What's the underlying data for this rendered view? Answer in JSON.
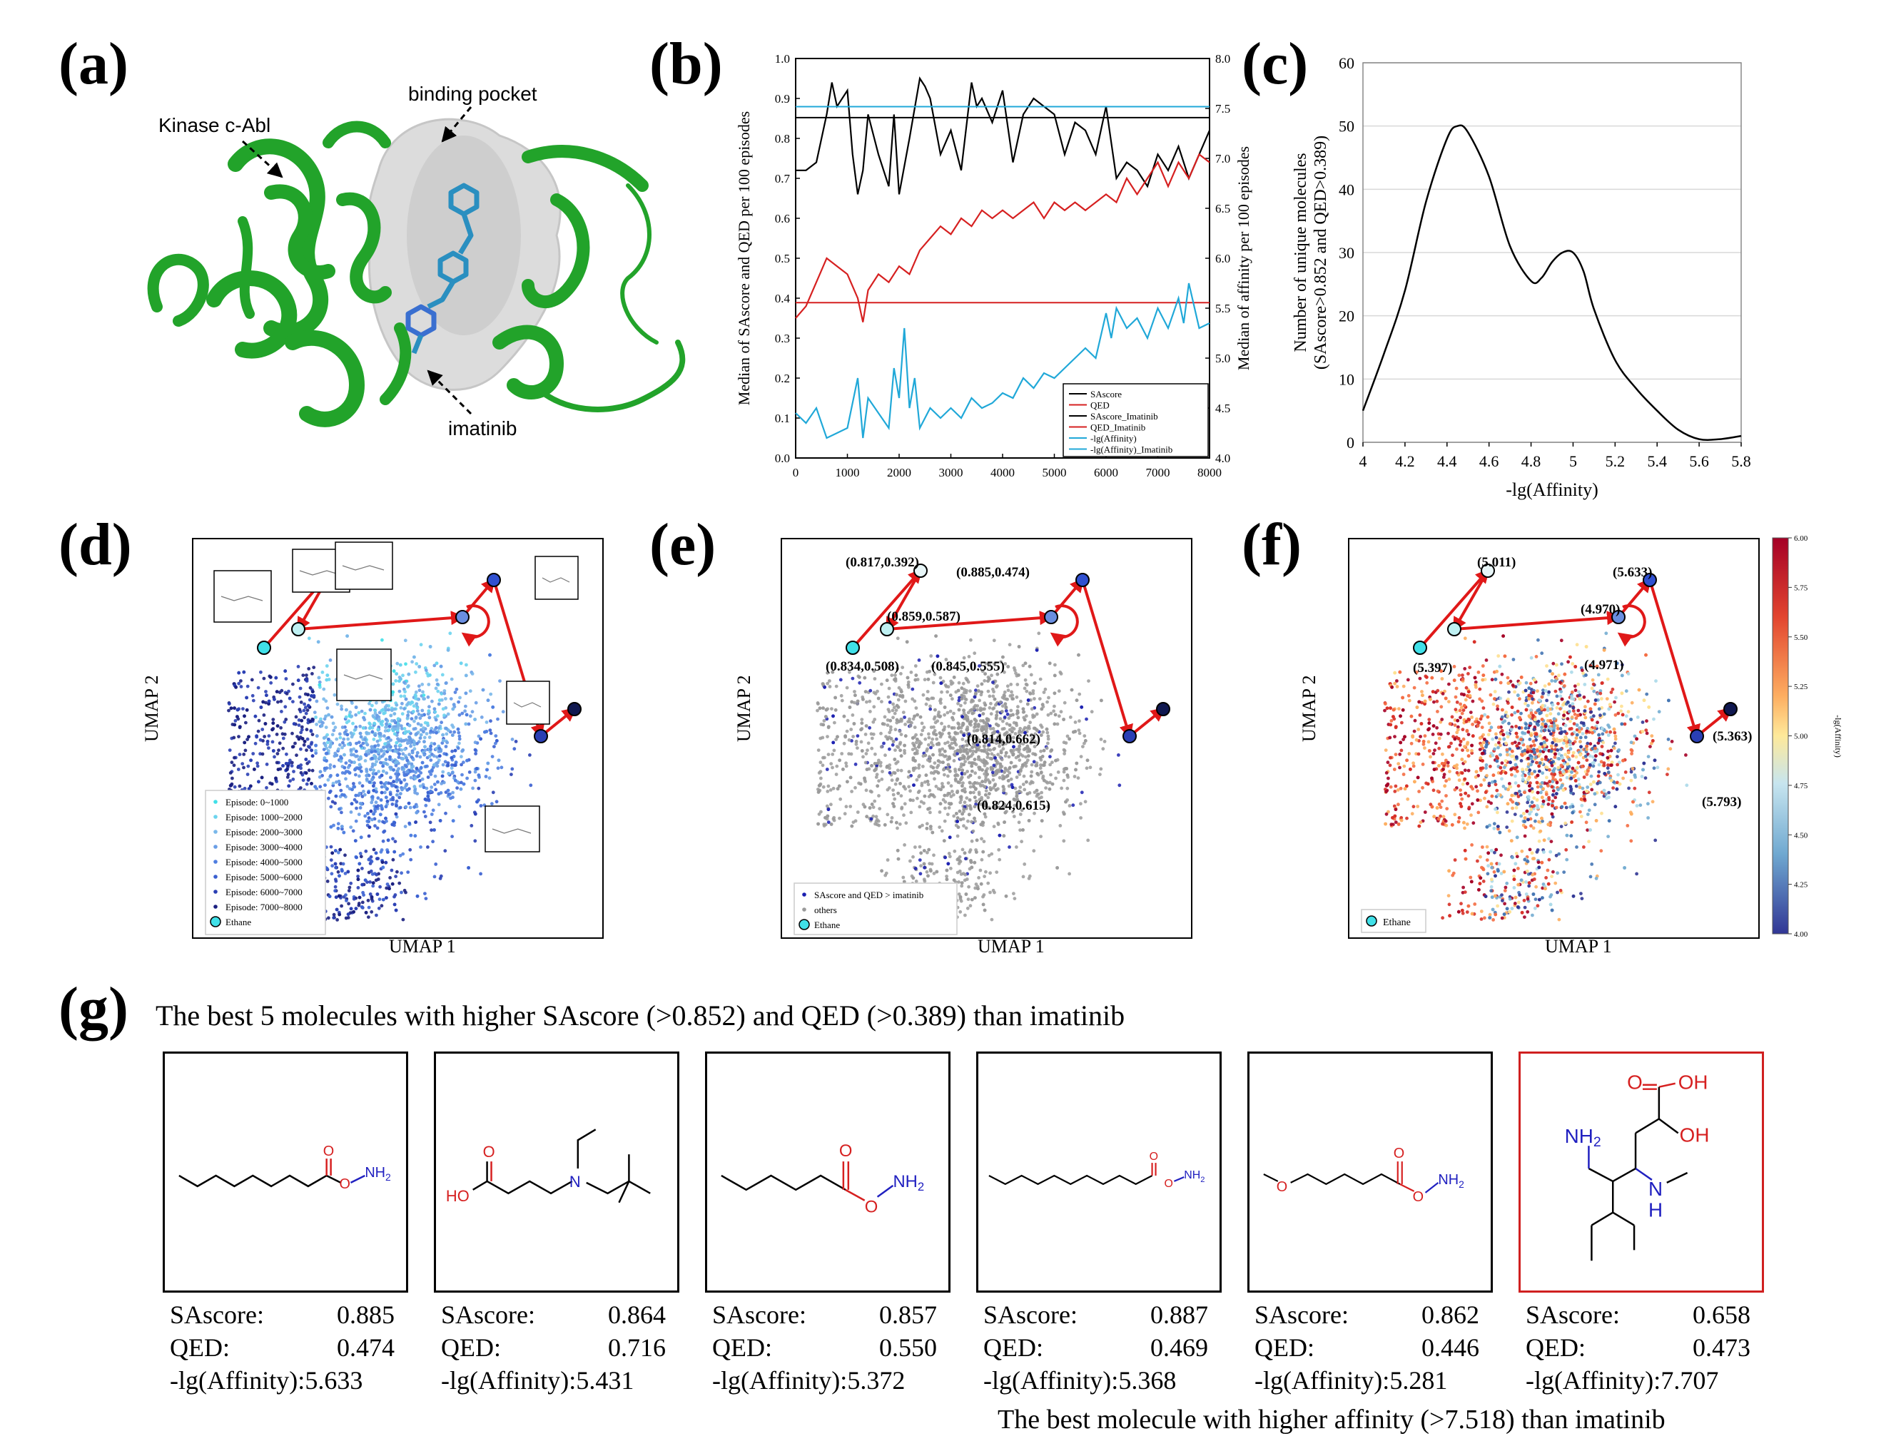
{
  "panel_labels": {
    "a": "(a)",
    "b": "(b)",
    "c": "(c)",
    "d": "(d)",
    "e": "(e)",
    "f": "(f)",
    "g": "(g)"
  },
  "panel_a": {
    "label_kinase": "Kinase c-Abl",
    "label_pocket": "binding pocket",
    "label_ligand": "imatinib",
    "colors": {
      "protein": "#22a32a",
      "pocket": "#cfcfcf",
      "ligand": "#2a8fc0"
    }
  },
  "panel_b": {
    "ylabel_left": "Median of SAscore and QED per 100 episodes",
    "ylabel_right": "Median of affinity per 100 episodes",
    "x_ticks": [
      "0",
      "1000",
      "2000",
      "3000",
      "4000",
      "5000",
      "6000",
      "7000",
      "8000"
    ],
    "yl_ticks": [
      "0.0",
      "0.1",
      "0.2",
      "0.3",
      "0.4",
      "0.5",
      "0.6",
      "0.7",
      "0.8",
      "0.9",
      "1.0"
    ],
    "yr_ticks": [
      "4.0",
      "4.5",
      "5.0",
      "5.5",
      "6.0",
      "6.5",
      "7.0",
      "7.5",
      "8.0"
    ],
    "legend": [
      "SAscore",
      "QED",
      "SAscore_Imatinib",
      "QED_Imatinib",
      "-lg(Affinity)",
      "-lg(Affinity)_Imatinib"
    ]
  },
  "panel_c": {
    "ylabel_line1": "Number of unique molecules",
    "ylabel_line2": "(SAscore>0.852 and QED>0.389)",
    "xlabel": "-lg(Affinity)",
    "x_ticks": [
      "4",
      "4.2",
      "4.4",
      "4.6",
      "4.8",
      "5",
      "5.2",
      "5.4",
      "5.6",
      "5.8"
    ],
    "y_ticks": [
      "0",
      "10",
      "20",
      "30",
      "40",
      "50",
      "60"
    ]
  },
  "umap": {
    "xlabel": "UMAP 1",
    "ylabel": "UMAP 2"
  },
  "panel_d": {
    "legend": [
      "Episode: 0~1000",
      "Episode: 1000~2000",
      "Episode: 2000~3000",
      "Episode: 3000~4000",
      "Episode: 4000~5000",
      "Episode: 5000~6000",
      "Episode: 6000~7000",
      "Episode: 7000~8000",
      "Ethane"
    ]
  },
  "panel_e": {
    "legend": [
      "SAscore and QED > imatinib",
      "others",
      "Ethane"
    ],
    "annotations": [
      "(0.817,0.392)",
      "(0.885,0.474)",
      "(0.859,0.587)",
      "(0.834,0.508)",
      "(0.845,0.555)",
      "(0.814,0.662)",
      "(0.824,0.615)"
    ]
  },
  "panel_f": {
    "legend": [
      "Ethane"
    ],
    "annotations": [
      "(5.011)",
      "(5.633)",
      "(4.970)",
      "(5.397)",
      "(4.971)",
      "(5.363)",
      "(5.793)"
    ],
    "colorbar_ticks": [
      "6.00",
      "5.75",
      "5.50",
      "5.25",
      "5.00",
      "4.75",
      "4.50",
      "4.25",
      "4.00"
    ],
    "colorbar_label": "-lg(Affinity)"
  },
  "panel_g": {
    "title": "The best 5 molecules with higher SAscore (>0.852) and QED (>0.389) than imatinib",
    "footer": "The best molecule with higher affinity (>7.518) than imatinib",
    "stat_labels": {
      "sa": "SAscore:",
      "qed": "QED:",
      "aff": "-lg(Affinity):"
    },
    "molecules": [
      {
        "sa": "0.885",
        "qed": "0.474",
        "aff": "5.633"
      },
      {
        "sa": "0.864",
        "qed": "0.716",
        "aff": "5.431"
      },
      {
        "sa": "0.857",
        "qed": "0.550",
        "aff": "5.372"
      },
      {
        "sa": "0.887",
        "qed": "0.469",
        "aff": "5.368"
      },
      {
        "sa": "0.862",
        "qed": "0.446",
        "aff": "5.281"
      },
      {
        "sa": "0.658",
        "qed": "0.473",
        "aff": "7.707"
      }
    ],
    "atom_labels": {
      "nh2": "NH",
      "o": "O",
      "n": "N",
      "ho": "HO",
      "oh": "OH",
      "h": "H"
    }
  },
  "chart_data": [
    {
      "type": "line",
      "panel": "b",
      "xlim": [
        0,
        8000
      ],
      "ylim_left": [
        0,
        1.0
      ],
      "ylim_right": [
        4.0,
        8.0
      ],
      "series": [
        {
          "name": "SAscore",
          "axis": "left",
          "color": "#000000",
          "x": [
            0,
            200,
            400,
            600,
            700,
            800,
            1000,
            1100,
            1200,
            1300,
            1400,
            1600,
            1800,
            1900,
            2000,
            2200,
            2400,
            2500,
            2600,
            2800,
            3000,
            3200,
            3400,
            3500,
            3600,
            3800,
            4000,
            4200,
            4400,
            4600,
            4800,
            5000,
            5200,
            5400,
            5600,
            5800,
            6000,
            6200,
            6400,
            6600,
            6800,
            7000,
            7200,
            7400,
            7600,
            7800,
            8000
          ],
          "y": [
            0.72,
            0.72,
            0.74,
            0.86,
            0.94,
            0.88,
            0.92,
            0.76,
            0.66,
            0.72,
            0.86,
            0.76,
            0.68,
            0.86,
            0.66,
            0.8,
            0.95,
            0.93,
            0.9,
            0.76,
            0.82,
            0.72,
            0.94,
            0.88,
            0.9,
            0.84,
            0.92,
            0.74,
            0.86,
            0.9,
            0.88,
            0.86,
            0.76,
            0.84,
            0.82,
            0.76,
            0.88,
            0.7,
            0.74,
            0.72,
            0.68,
            0.76,
            0.72,
            0.78,
            0.7,
            0.76,
            0.82
          ]
        },
        {
          "name": "QED",
          "axis": "left",
          "color": "#d62020",
          "x": [
            0,
            200,
            400,
            600,
            800,
            1000,
            1200,
            1300,
            1400,
            1600,
            1800,
            2000,
            2200,
            2400,
            2600,
            2800,
            3000,
            3200,
            3400,
            3600,
            3800,
            4000,
            4200,
            4400,
            4600,
            4800,
            5000,
            5200,
            5400,
            5600,
            5800,
            6000,
            6200,
            6400,
            6600,
            6800,
            7000,
            7200,
            7400,
            7600,
            7800,
            8000
          ],
          "y": [
            0.35,
            0.38,
            0.44,
            0.5,
            0.48,
            0.46,
            0.4,
            0.34,
            0.42,
            0.46,
            0.44,
            0.48,
            0.46,
            0.52,
            0.55,
            0.58,
            0.56,
            0.6,
            0.58,
            0.62,
            0.6,
            0.62,
            0.6,
            0.62,
            0.64,
            0.6,
            0.64,
            0.62,
            0.64,
            0.62,
            0.64,
            0.66,
            0.64,
            0.7,
            0.66,
            0.7,
            0.74,
            0.68,
            0.74,
            0.7,
            0.76,
            0.74
          ]
        },
        {
          "name": "SAscore_Imatinib",
          "axis": "left",
          "color": "#000000",
          "x": [
            0,
            8000
          ],
          "y": [
            0.852,
            0.852
          ]
        },
        {
          "name": "QED_Imatinib",
          "axis": "left",
          "color": "#d62020",
          "x": [
            0,
            8000
          ],
          "y": [
            0.389,
            0.389
          ]
        },
        {
          "name": "-lg(Affinity)",
          "axis": "right",
          "color": "#20a8d8",
          "x": [
            0,
            200,
            400,
            600,
            800,
            1000,
            1200,
            1300,
            1400,
            1600,
            1800,
            1900,
            2000,
            2100,
            2200,
            2300,
            2400,
            2600,
            2800,
            3000,
            3200,
            3400,
            3600,
            3800,
            4000,
            4200,
            4400,
            4600,
            4800,
            5000,
            5200,
            5400,
            5600,
            5800,
            6000,
            6100,
            6200,
            6400,
            6600,
            6800,
            7000,
            7200,
            7400,
            7500,
            7600,
            7800,
            8000
          ],
          "y": [
            4.45,
            4.35,
            4.5,
            4.2,
            4.25,
            4.3,
            4.8,
            4.2,
            4.6,
            4.45,
            4.3,
            4.9,
            4.6,
            5.3,
            4.5,
            4.8,
            4.3,
            4.5,
            4.4,
            4.5,
            4.4,
            4.6,
            4.5,
            4.55,
            4.65,
            4.6,
            4.8,
            4.7,
            4.85,
            4.8,
            4.9,
            5.0,
            5.1,
            5.0,
            5.45,
            5.2,
            5.5,
            5.3,
            5.4,
            5.2,
            5.5,
            5.3,
            5.6,
            5.35,
            5.75,
            5.3,
            5.35
          ]
        },
        {
          "name": "-lg(Affinity)_Imatinib",
          "axis": "right",
          "color": "#20a8d8",
          "x": [
            0,
            8000
          ],
          "y": [
            7.518,
            7.518
          ]
        }
      ]
    },
    {
      "type": "line",
      "panel": "c",
      "xlim": [
        4,
        5.8
      ],
      "ylim": [
        0,
        60
      ],
      "x": [
        4.0,
        4.1,
        4.2,
        4.3,
        4.4,
        4.45,
        4.5,
        4.6,
        4.7,
        4.8,
        4.85,
        4.9,
        4.95,
        5.0,
        5.05,
        5.1,
        5.2,
        5.3,
        5.4,
        5.5,
        5.6,
        5.7,
        5.8
      ],
      "y": [
        5,
        14,
        24,
        38,
        48,
        50,
        49,
        42,
        31,
        25.5,
        26,
        28.5,
        30,
        30,
        27,
        21,
        13,
        8.5,
        5,
        2,
        0.5,
        0.5,
        1
      ]
    },
    {
      "type": "scatter",
      "panel": "d",
      "series": [
        {
          "name": "Episode: 0~1000",
          "color": "#40e0e8"
        },
        {
          "name": "Episode: 1000~2000",
          "color": "#6cd4ee"
        },
        {
          "name": "Episode: 2000~3000",
          "color": "#7ab8ea"
        },
        {
          "name": "Episode: 3000~4000",
          "color": "#6a9ee6"
        },
        {
          "name": "Episode: 4000~5000",
          "color": "#4f7ee0"
        },
        {
          "name": "Episode: 5000~6000",
          "color": "#3a5fd0"
        },
        {
          "name": "Episode: 6000~7000",
          "color": "#2a3fb4"
        },
        {
          "name": "Episode: 7000~8000",
          "color": "#1a1f80"
        }
      ]
    }
  ]
}
